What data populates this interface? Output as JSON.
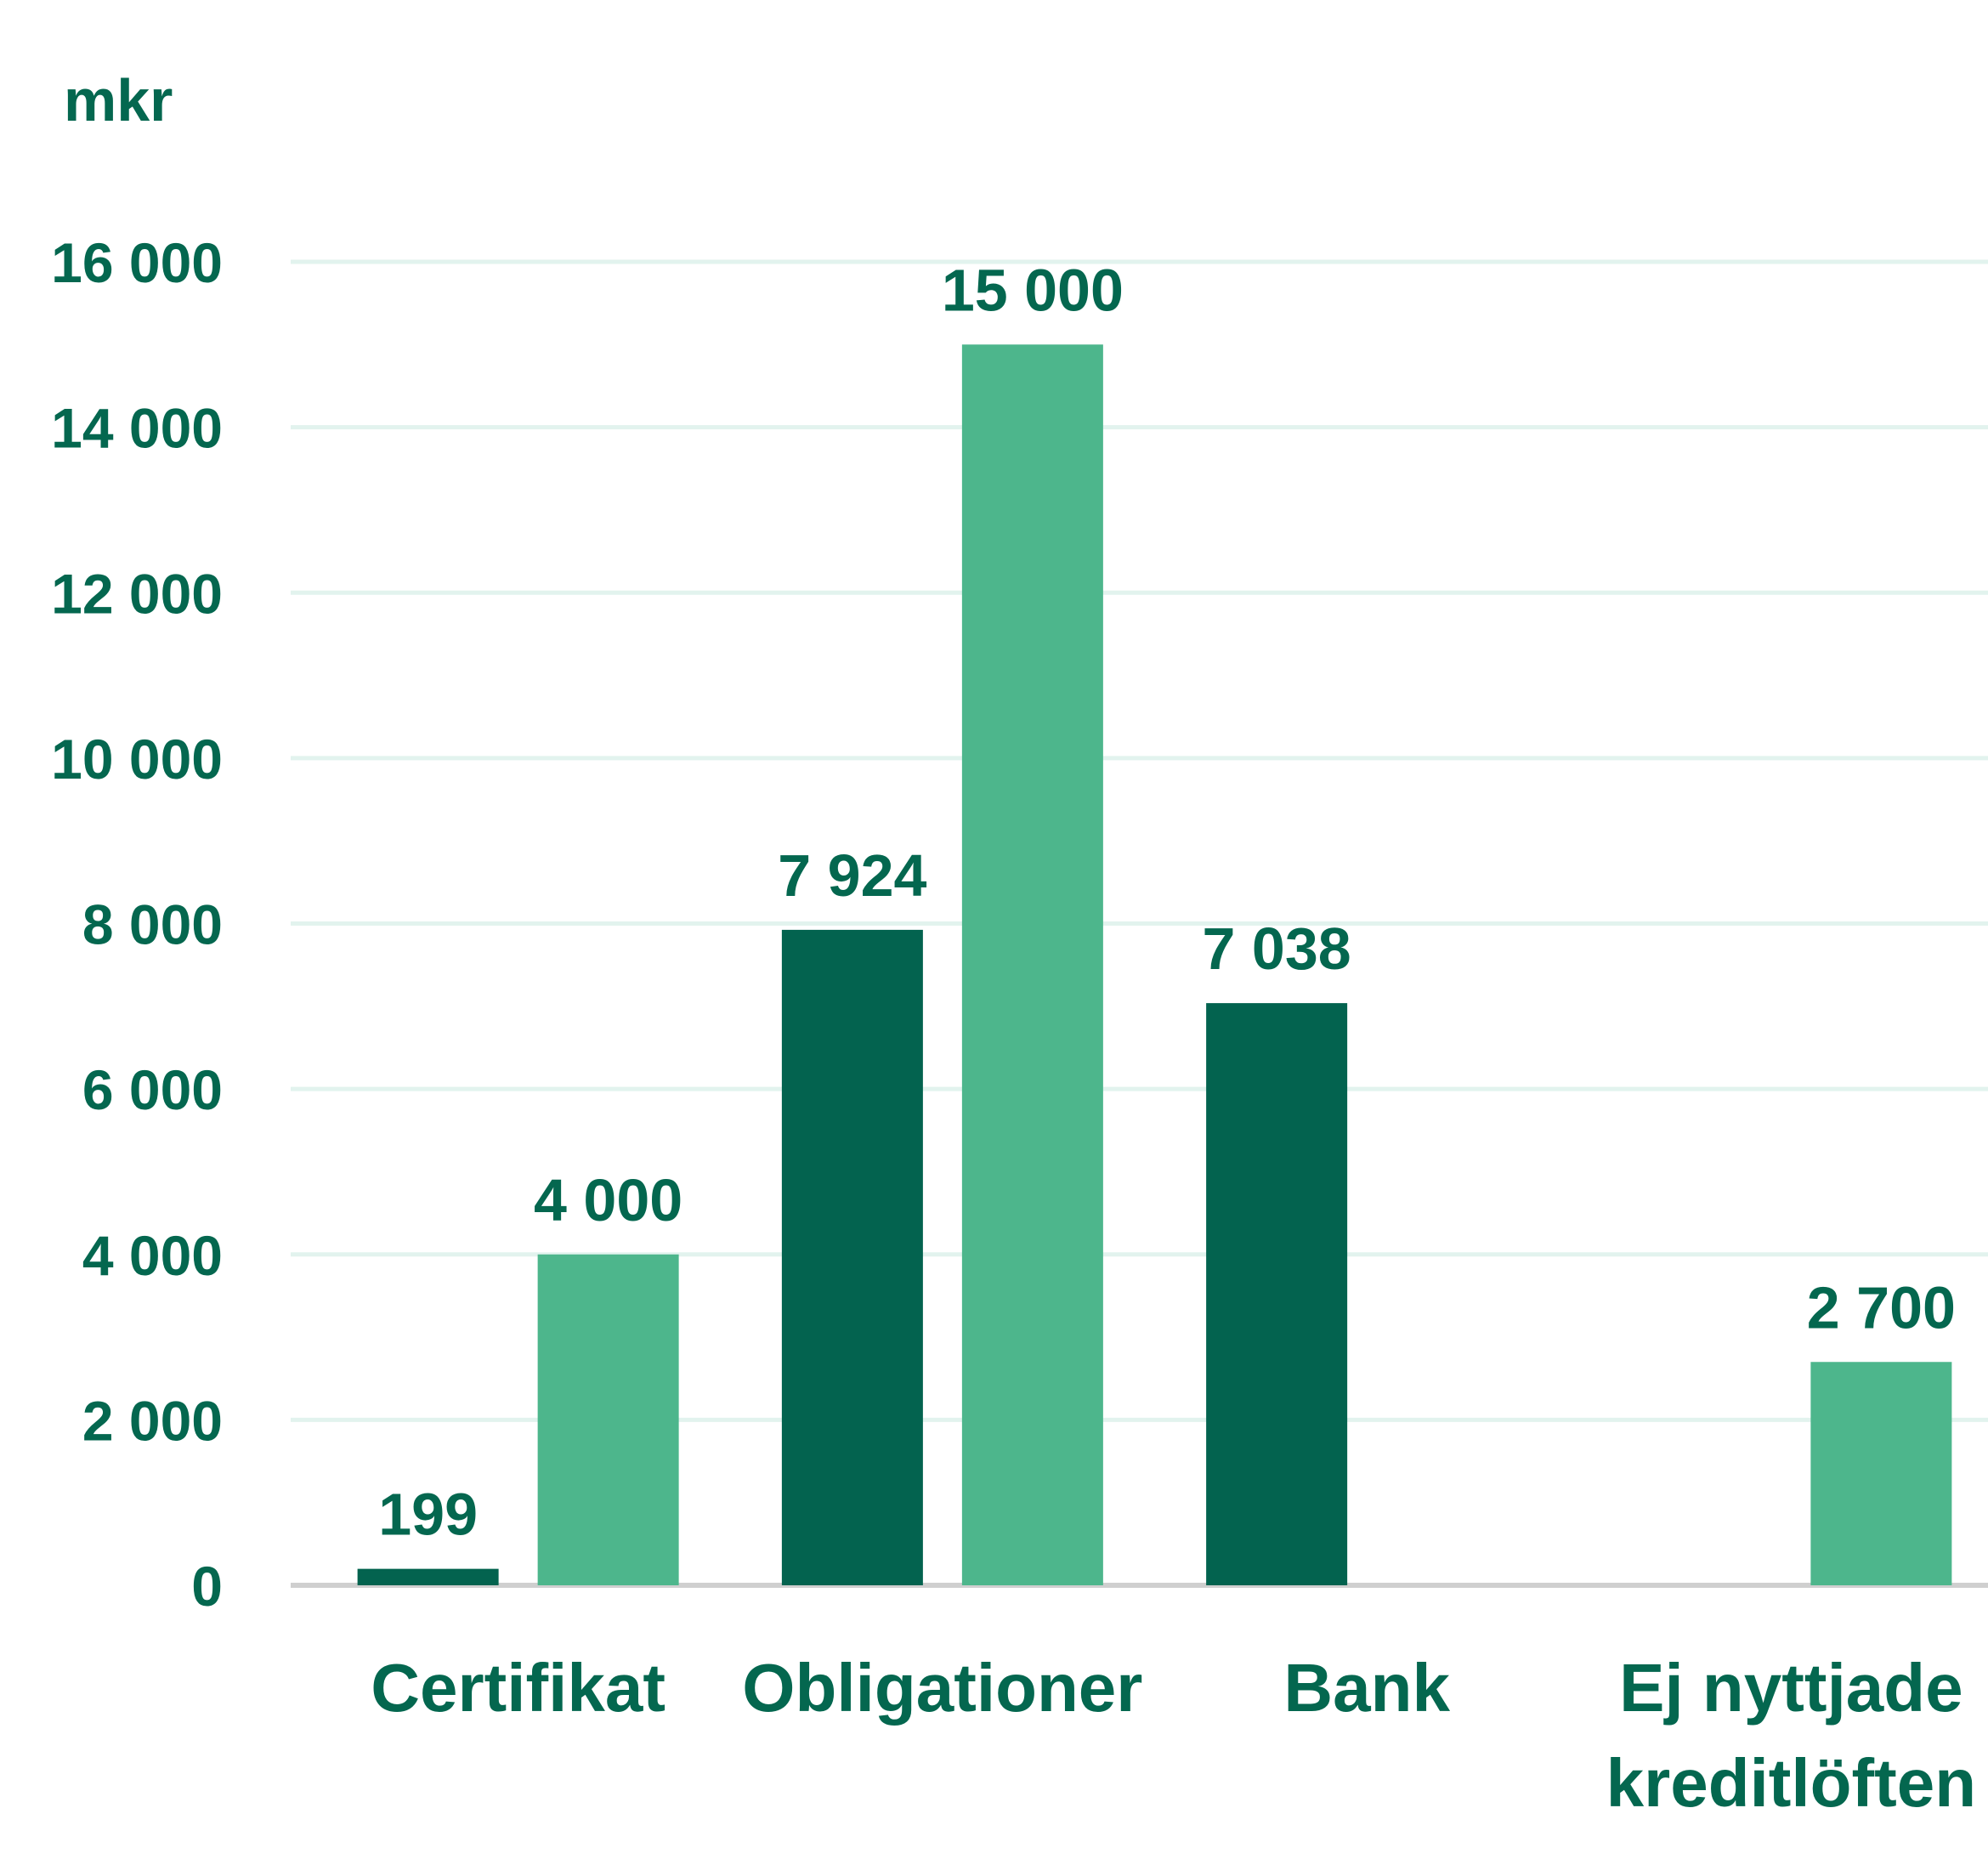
{
  "chart_data": {
    "type": "bar",
    "unit_label": "mkr",
    "categories": [
      [
        "Certifikat"
      ],
      [
        "Obligationer"
      ],
      [
        "Bank"
      ],
      [
        "Ej nyttjade",
        "kreditlöften"
      ]
    ],
    "series": [
      {
        "values": [
          199,
          7924,
          7038,
          null
        ],
        "labels": [
          "199",
          "7 924",
          "7 038",
          ""
        ],
        "color": "#03634f"
      },
      {
        "values": [
          4000,
          15000,
          null,
          2700
        ],
        "labels": [
          "4 000",
          "15 000",
          "",
          "2 700"
        ],
        "color": "#4db68c"
      }
    ],
    "ylim": [
      0,
      16000
    ],
    "yticks": [
      0,
      2000,
      4000,
      6000,
      8000,
      10000,
      12000,
      14000,
      16000
    ],
    "ytick_labels": [
      "0",
      "2 000",
      "4 000",
      "6 000",
      "8 000",
      "10 000",
      "12 000",
      "14 000",
      "16 000"
    ],
    "grid": true,
    "legend": "none"
  }
}
